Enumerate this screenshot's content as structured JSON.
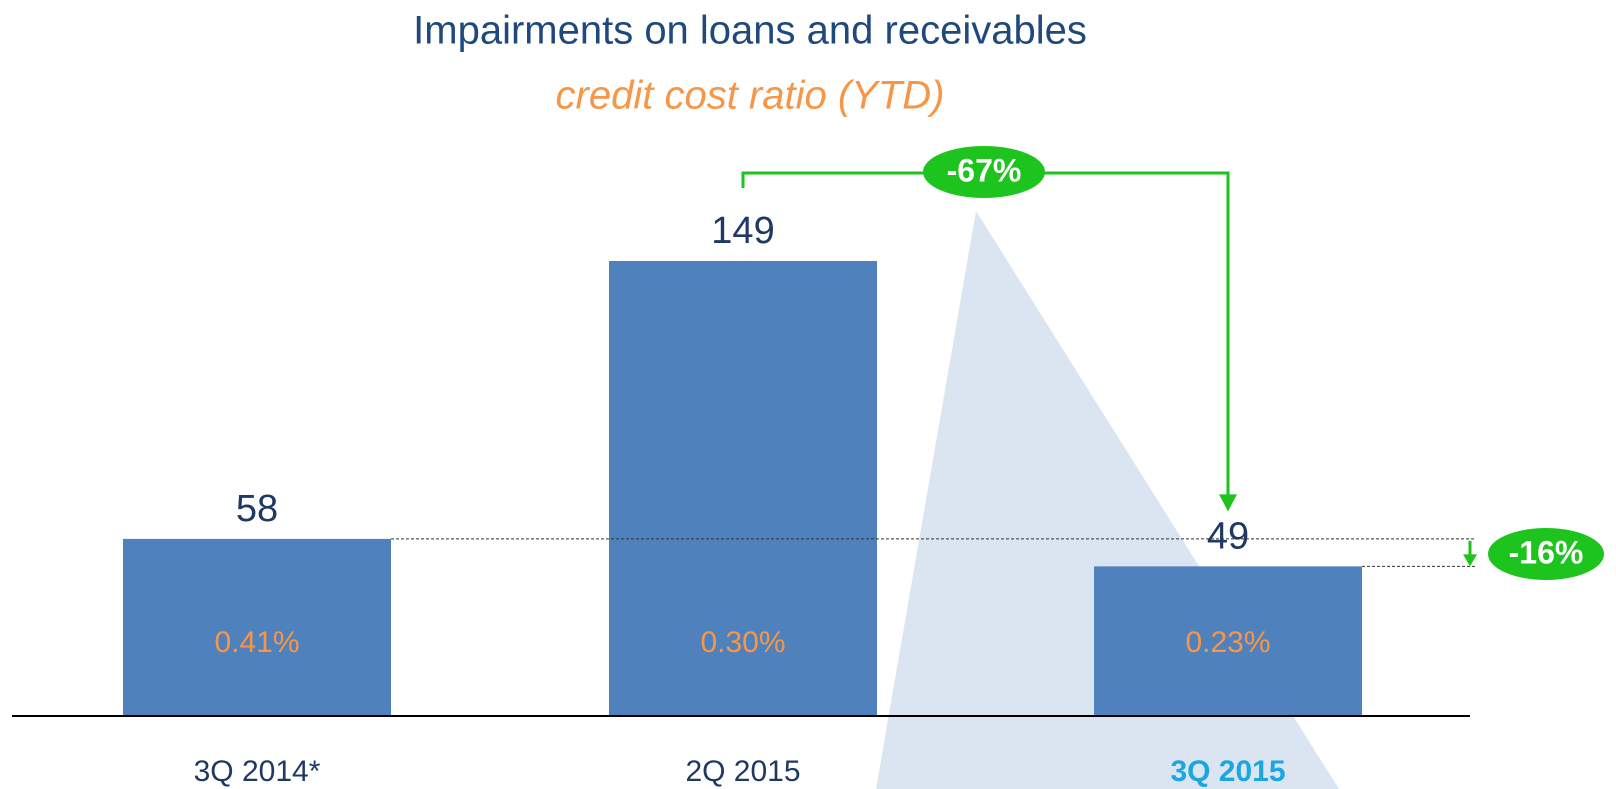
{
  "chart_data": {
    "type": "bar",
    "title": "Impairments on loans and receivables",
    "subtitle": "credit cost ratio (YTD)",
    "categories": [
      "3Q 2014*",
      "2Q 2015",
      "3Q 2015"
    ],
    "values": [
      58,
      149,
      49
    ],
    "ratio_labels": [
      "0.41%",
      "0.30%",
      "0.23%"
    ],
    "highlight_category": "3Q 2015",
    "color": "#4f81bd",
    "annotations": [
      {
        "label": "-67%"
      },
      {
        "label": "-16%"
      }
    ]
  }
}
